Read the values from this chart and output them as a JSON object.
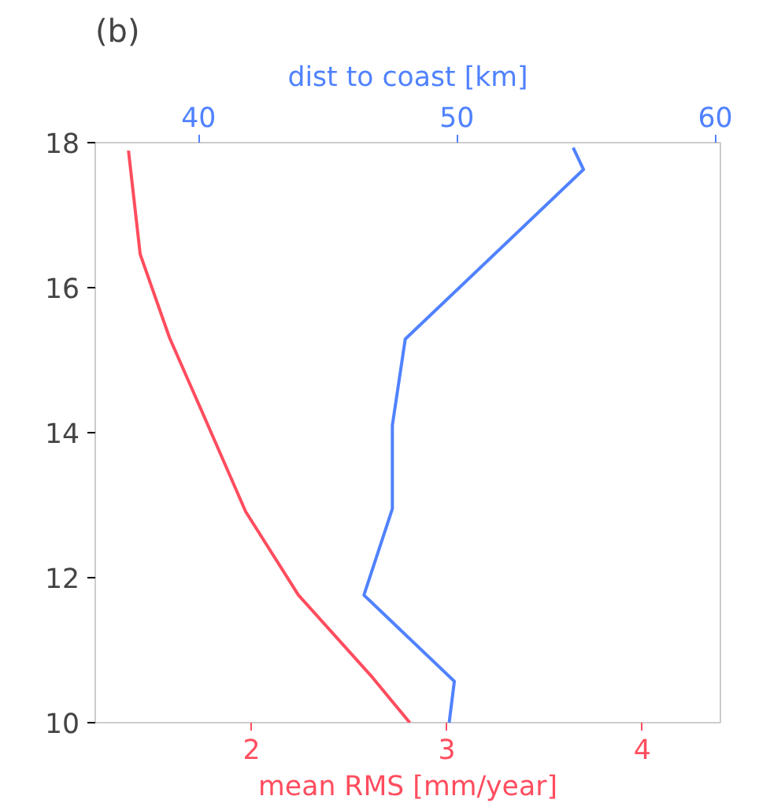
{
  "chart_data": {
    "type": "line",
    "title": "(b)",
    "xlabel": "mean RMS [mm/year]",
    "x2label": "dist to coast [km]",
    "xlim": [
      1.2,
      4.4
    ],
    "xticks": [
      2,
      3,
      4
    ],
    "x2lim": [
      36,
      60.2
    ],
    "x2ticks": [
      40,
      50,
      60
    ],
    "ylim": [
      10,
      18
    ],
    "yticks": [
      10,
      12,
      14,
      16,
      18
    ],
    "grid": false,
    "series": [
      {
        "color": "#ff4d5e",
        "x": [
          2.81,
          2.62,
          2.24,
          1.97,
          1.8,
          1.58,
          1.43,
          1.37
        ],
        "values": [
          10,
          10.62,
          11.76,
          12.91,
          13.96,
          15.31,
          16.46,
          17.89
        ]
      },
      {
        "color": "#5082ff",
        "axis": "x2",
        "x": [
          49.7,
          49.9,
          46.4,
          47.5,
          47.5,
          48.0,
          54.9,
          54.5
        ],
        "values": [
          10,
          10.57,
          11.76,
          12.95,
          14.1,
          15.29,
          17.63,
          17.93
        ]
      }
    ]
  }
}
